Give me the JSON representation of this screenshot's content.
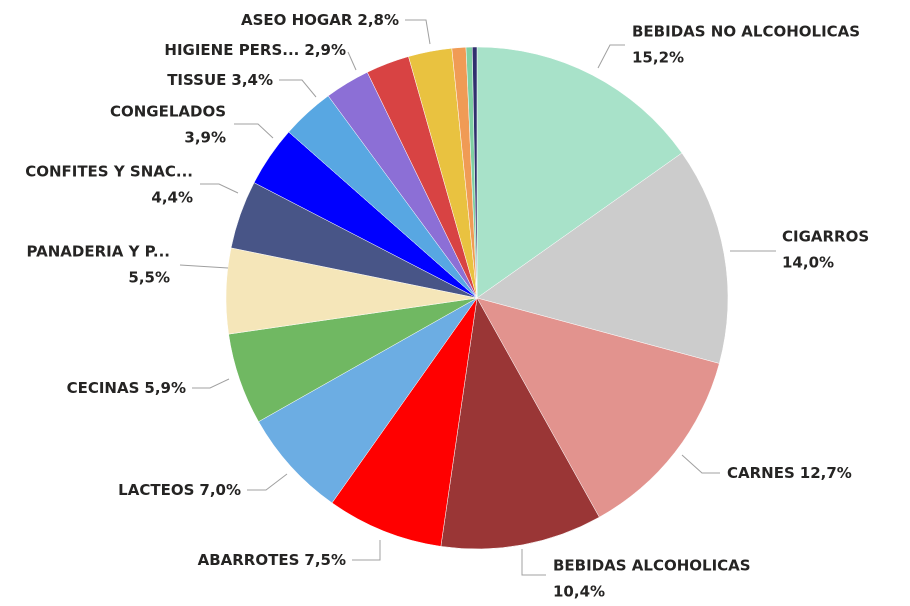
{
  "chart_data": {
    "type": "pie",
    "categories": [
      "BEBIDAS NO ALCOHOLICAS",
      "CIGARROS",
      "CARNES",
      "BEBIDAS ALCOHOLICAS",
      "ABARROTES",
      "LACTEOS",
      "CECINAS",
      "PANADERIA Y P...",
      "CONFITES Y SNAC...",
      "CONGELADOS",
      "TISSUE",
      "HIGIENE PERS...",
      null,
      "ASEO HOGAR",
      null,
      null,
      null
    ],
    "values": [
      15.2,
      14.0,
      12.7,
      10.4,
      7.5,
      7.0,
      5.9,
      5.5,
      4.4,
      3.9,
      3.4,
      2.9,
      2.8,
      2.8,
      0.9,
      0.4,
      0.3
    ],
    "value_labels": [
      "15,2%",
      "14,0%",
      "12,7%",
      "10,4%",
      "7,5%",
      "7,0%",
      "5,9%",
      "5,5%",
      "4,4%",
      "3,9%",
      "3,4%",
      "2,9%",
      null,
      "2,8%",
      null,
      null,
      null
    ],
    "colors": [
      "#a8e2c9",
      "#cccccc",
      "#e2938e",
      "#9a3636",
      "#ff0000",
      "#6cade3",
      "#70b862",
      "#f5e6b9",
      "#485587",
      "#0000ff",
      "#58a7e2",
      "#8c6fd6",
      "#d84343",
      "#e9c240",
      "#f09b55",
      "#7fd0a3",
      "#30306e"
    ]
  }
}
